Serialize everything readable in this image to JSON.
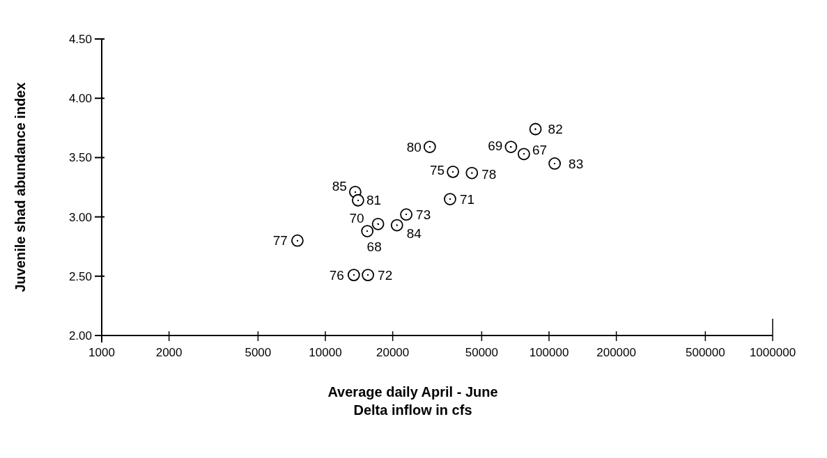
{
  "chart_data": {
    "type": "scatter",
    "xlabel": "Average daily April - June\nDelta inflow in cfs",
    "ylabel": "Juvenile shad abundance index",
    "log": "x",
    "marker": "circle",
    "grid": false,
    "xlim": [
      1000,
      1000000
    ],
    "xticks": [
      1000,
      2000,
      5000,
      10000,
      20000,
      50000,
      100000,
      200000,
      500000,
      1000000
    ],
    "ylim": [
      2.0,
      4.5
    ],
    "yticks": [
      {
        "value": 2.0,
        "label": "2.00"
      },
      {
        "value": 2.5,
        "label": "2.50"
      },
      {
        "value": 3.0,
        "label": "3.00"
      },
      {
        "value": 3.5,
        "label": "3.50"
      },
      {
        "value": 4.0,
        "label": "4.00"
      },
      {
        "value": 4.5,
        "label": "4.50"
      }
    ],
    "series": [
      {
        "color": "#000000",
        "x": [
          7500,
          13400,
          15500,
          15400,
          17200,
          13600,
          14000,
          20900,
          23000,
          29300,
          37200,
          36100,
          45200,
          67600,
          77200,
          87000,
          106000
        ],
        "values": [
          2.8,
          2.51,
          2.51,
          2.88,
          2.94,
          3.21,
          3.14,
          2.93,
          3.02,
          3.59,
          3.38,
          3.15,
          3.37,
          3.59,
          3.53,
          3.74,
          3.45
        ]
      }
    ],
    "annotations": [
      {
        "text": "77",
        "x": 7500,
        "y": 2.8
      },
      {
        "text": "76",
        "x": 13400,
        "y": 2.51
      },
      {
        "text": "72",
        "x": 15500,
        "y": 2.51
      },
      {
        "text": "68",
        "x": 15400,
        "y": 2.88
      },
      {
        "text": "70",
        "x": 17200,
        "y": 2.94
      },
      {
        "text": "85",
        "x": 13600,
        "y": 3.21
      },
      {
        "text": "81",
        "x": 14000,
        "y": 3.14
      },
      {
        "text": "84",
        "x": 20900,
        "y": 2.93
      },
      {
        "text": "73",
        "x": 23000,
        "y": 3.02
      },
      {
        "text": "80",
        "x": 29300,
        "y": 3.59
      },
      {
        "text": "75",
        "x": 37200,
        "y": 3.38
      },
      {
        "text": "71",
        "x": 36100,
        "y": 3.15
      },
      {
        "text": "78",
        "x": 45200,
        "y": 3.37
      },
      {
        "text": "69",
        "x": 67600,
        "y": 3.59
      },
      {
        "text": "67",
        "x": 77200,
        "y": 3.53
      },
      {
        "text": "82",
        "x": 87000,
        "y": 3.74
      },
      {
        "text": "83",
        "x": 106000,
        "y": 3.45
      }
    ]
  }
}
